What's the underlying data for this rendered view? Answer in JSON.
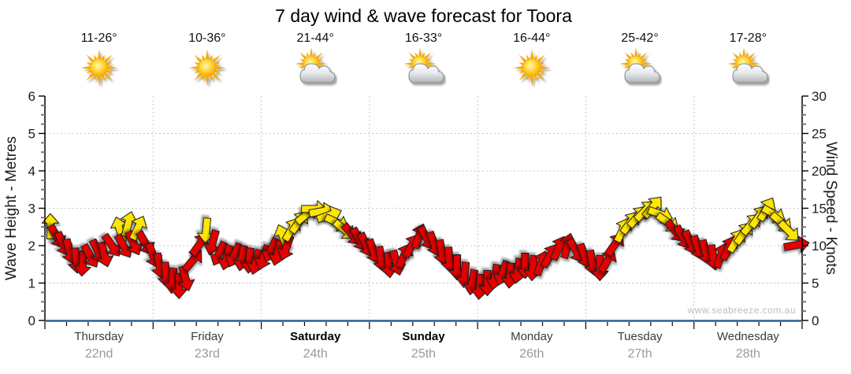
{
  "title": "7 day wind & wave forecast for Toora",
  "watermark": "www.seabreeze.com.au",
  "chart_data": {
    "type": "scatter",
    "subtype": "wind-arrow-forecast",
    "title": "7 day wind & wave forecast for Toora",
    "left_axis": {
      "label": "Wave Height - Metres",
      "min": 0,
      "max": 6,
      "tick_step": 1,
      "minor_step": 0.25,
      "ticks": [
        0,
        1,
        2,
        3,
        4,
        5,
        6
      ]
    },
    "right_axis": {
      "label": "Wind Speed - Knots",
      "min": 0,
      "max": 30,
      "tick_step": 5,
      "minor_step": 1.25,
      "ticks": [
        0,
        5,
        10,
        15,
        20,
        25,
        30
      ]
    },
    "grid": {
      "horizontal_lines_metres": [
        1,
        2,
        3,
        4,
        5
      ],
      "vertical_lines_at_day_boundaries": true,
      "style": "dotted"
    },
    "legend_position": "none",
    "days": [
      {
        "name": "Thursday",
        "date": "22nd",
        "temp": "11-26°",
        "icon": "sunny-icon",
        "bold": false
      },
      {
        "name": "Friday",
        "date": "23rd",
        "temp": "10-36°",
        "icon": "sunny-icon",
        "bold": false
      },
      {
        "name": "Saturday",
        "date": "24th",
        "temp": "21-44°",
        "icon": "partly-cloudy-icon",
        "bold": true
      },
      {
        "name": "Sunday",
        "date": "25th",
        "temp": "16-33°",
        "icon": "partly-cloudy-icon",
        "bold": true
      },
      {
        "name": "Monday",
        "date": "26th",
        "temp": "16-44°",
        "icon": "sunny-icon",
        "bold": false
      },
      {
        "name": "Tuesday",
        "date": "27th",
        "temp": "25-42°",
        "icon": "partly-cloudy-icon",
        "bold": false
      },
      {
        "name": "Wednesday",
        "date": "28th",
        "temp": "17-28°",
        "icon": "partly-cloudy-icon",
        "bold": false
      }
    ],
    "colors": {
      "arrow_red": "#e60000",
      "arrow_yellow": "#ffe600",
      "arrow_outline": "#1a1a1a",
      "baseline": "#2e5e8e",
      "grid": "#c8c8c8",
      "tick_major": "#000000",
      "tick_minor": "#777777",
      "date_text": "#9a9a9a",
      "watermark_text": "#bdbdbd"
    },
    "point_format": "[time_in_days_from_Thursday_0am (0-7), wind_speed_knots, color r=red y=yellow, arrow_rotation_deg_0=up]",
    "points": [
      [
        0.05,
        12.6,
        "y",
        0
      ],
      [
        0.11,
        11.2,
        "r",
        150
      ],
      [
        0.17,
        10.2,
        "r",
        155
      ],
      [
        0.23,
        9.2,
        "r",
        165
      ],
      [
        0.29,
        8.0,
        "r",
        175
      ],
      [
        0.35,
        7.6,
        "r",
        185
      ],
      [
        0.42,
        8.6,
        "r",
        150
      ],
      [
        0.49,
        9.2,
        "r",
        155
      ],
      [
        0.55,
        8.8,
        "r",
        165
      ],
      [
        0.62,
        10.0,
        "r",
        145
      ],
      [
        0.69,
        12.2,
        "y",
        345
      ],
      [
        0.73,
        9.9,
        "r",
        150
      ],
      [
        0.77,
        12.9,
        "y",
        15
      ],
      [
        0.82,
        10.3,
        "r",
        155
      ],
      [
        0.86,
        12.4,
        "y",
        25
      ],
      [
        0.93,
        10.3,
        "r",
        150
      ],
      [
        1.0,
        8.7,
        "r",
        160
      ],
      [
        1.06,
        7.3,
        "r",
        170
      ],
      [
        1.12,
        6.1,
        "r",
        175
      ],
      [
        1.18,
        5.3,
        "r",
        185
      ],
      [
        1.24,
        4.6,
        "r",
        180
      ],
      [
        1.3,
        5.6,
        "r",
        165
      ],
      [
        1.37,
        8.1,
        "r",
        40
      ],
      [
        1.43,
        10.2,
        "r",
        35
      ],
      [
        1.49,
        12.0,
        "y",
        185
      ],
      [
        1.55,
        10.4,
        "r",
        195
      ],
      [
        1.61,
        8.9,
        "r",
        205
      ],
      [
        1.68,
        8.4,
        "r",
        195
      ],
      [
        1.75,
        8.7,
        "r",
        205
      ],
      [
        1.82,
        8.3,
        "r",
        190
      ],
      [
        1.89,
        8.0,
        "r",
        185
      ],
      [
        1.95,
        7.8,
        "r",
        195
      ],
      [
        2.02,
        8.4,
        "r",
        200
      ],
      [
        2.09,
        9.4,
        "r",
        205
      ],
      [
        2.15,
        9.0,
        "r",
        195
      ],
      [
        2.2,
        11.2,
        "y",
        340
      ],
      [
        2.23,
        9.7,
        "r",
        200
      ],
      [
        2.28,
        12.2,
        "y",
        30
      ],
      [
        2.35,
        13.2,
        "y",
        35
      ],
      [
        2.42,
        14.2,
        "y",
        50
      ],
      [
        2.49,
        14.9,
        "y",
        90
      ],
      [
        2.56,
        14.6,
        "y",
        80
      ],
      [
        2.63,
        14.1,
        "y",
        70
      ],
      [
        2.7,
        13.1,
        "y",
        115
      ],
      [
        2.77,
        12.1,
        "y",
        130
      ],
      [
        2.84,
        11.5,
        "r",
        140
      ],
      [
        2.91,
        10.8,
        "r",
        150
      ],
      [
        2.97,
        10.1,
        "r",
        155
      ],
      [
        3.04,
        9.2,
        "r",
        160
      ],
      [
        3.11,
        8.2,
        "r",
        170
      ],
      [
        3.18,
        7.4,
        "r",
        175
      ],
      [
        3.25,
        7.7,
        "r",
        165
      ],
      [
        3.32,
        8.7,
        "r",
        25
      ],
      [
        3.39,
        10.0,
        "r",
        30
      ],
      [
        3.46,
        11.3,
        "r",
        20
      ],
      [
        3.53,
        11.0,
        "r",
        150
      ],
      [
        3.6,
        10.2,
        "r",
        160
      ],
      [
        3.67,
        9.1,
        "r",
        170
      ],
      [
        3.74,
        8.1,
        "r",
        175
      ],
      [
        3.81,
        7.1,
        "r",
        180
      ],
      [
        3.88,
        6.1,
        "r",
        185
      ],
      [
        3.95,
        5.1,
        "r",
        190
      ],
      [
        4.02,
        4.5,
        "r",
        185
      ],
      [
        4.09,
        5.0,
        "r",
        180
      ],
      [
        4.16,
        5.8,
        "r",
        190
      ],
      [
        4.23,
        6.3,
        "r",
        200
      ],
      [
        4.3,
        6.0,
        "r",
        185
      ],
      [
        4.37,
        6.6,
        "r",
        190
      ],
      [
        4.44,
        7.3,
        "r",
        180
      ],
      [
        4.51,
        7.0,
        "r",
        185
      ],
      [
        4.59,
        7.7,
        "r",
        20
      ],
      [
        4.67,
        8.7,
        "r",
        30
      ],
      [
        4.75,
        9.7,
        "r",
        25
      ],
      [
        4.83,
        10.0,
        "r",
        15
      ],
      [
        4.91,
        9.3,
        "r",
        150
      ],
      [
        4.99,
        8.6,
        "r",
        160
      ],
      [
        5.06,
        7.7,
        "r",
        170
      ],
      [
        5.13,
        7.0,
        "r",
        180
      ],
      [
        5.2,
        8.0,
        "r",
        30
      ],
      [
        5.27,
        10.2,
        "r",
        35
      ],
      [
        5.34,
        12.1,
        "y",
        25
      ],
      [
        5.41,
        13.1,
        "y",
        35
      ],
      [
        5.48,
        13.9,
        "y",
        40
      ],
      [
        5.55,
        14.7,
        "y",
        45
      ],
      [
        5.62,
        15.2,
        "y",
        40
      ],
      [
        5.69,
        14.2,
        "y",
        110
      ],
      [
        5.76,
        13.1,
        "y",
        125
      ],
      [
        5.83,
        11.9,
        "r",
        140
      ],
      [
        5.9,
        11.1,
        "r",
        150
      ],
      [
        5.97,
        10.4,
        "r",
        155
      ],
      [
        6.04,
        9.7,
        "r",
        160
      ],
      [
        6.11,
        9.1,
        "r",
        165
      ],
      [
        6.18,
        8.4,
        "r",
        170
      ],
      [
        6.25,
        8.7,
        "r",
        20
      ],
      [
        6.32,
        9.7,
        "r",
        25
      ],
      [
        6.39,
        10.7,
        "y",
        30
      ],
      [
        6.46,
        11.7,
        "y",
        35
      ],
      [
        6.53,
        12.9,
        "y",
        40
      ],
      [
        6.6,
        13.9,
        "y",
        35
      ],
      [
        6.67,
        14.9,
        "y",
        30
      ],
      [
        6.74,
        14.2,
        "y",
        120
      ],
      [
        6.81,
        13.1,
        "y",
        130
      ],
      [
        6.88,
        11.9,
        "y",
        135
      ],
      [
        6.95,
        10.1,
        "r",
        80
      ]
    ]
  }
}
